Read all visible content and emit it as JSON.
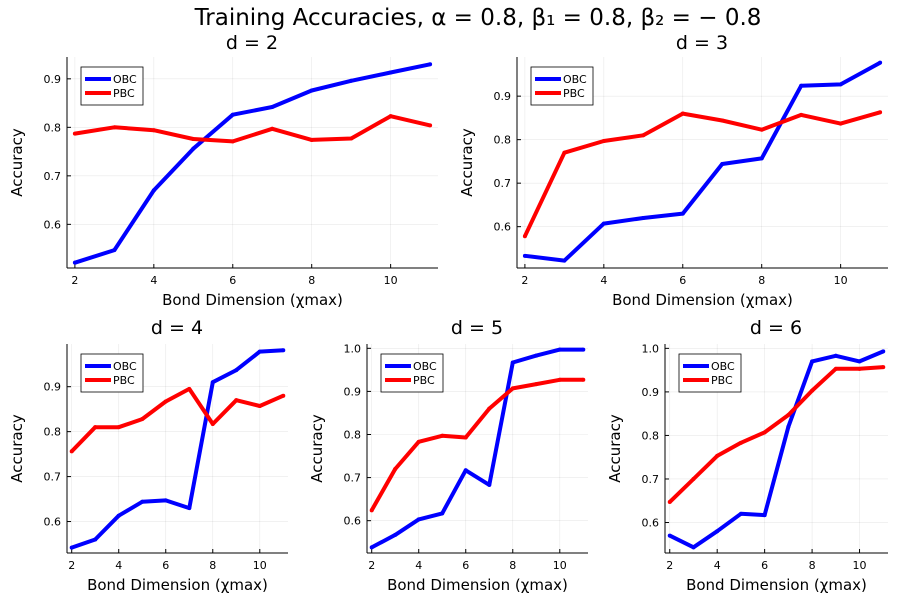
{
  "suptitle": "Training Accuracies, α = 0.8, β₁ = 0.8, β₂ = − 0.8",
  "colors": {
    "OBC": "#0000ff",
    "PBC": "#ff0000"
  },
  "chart_data": [
    {
      "type": "line",
      "title": "d = 2",
      "xlabel": "Bond Dimension (χmax)",
      "ylabel": "Accuracy",
      "x": [
        2,
        3,
        4,
        5,
        6,
        7,
        8,
        9,
        10,
        11
      ],
      "xlim": [
        1.8,
        11.2
      ],
      "ylim": [
        0.51,
        0.945
      ],
      "xticks": [
        2,
        4,
        6,
        8,
        10
      ],
      "yticks": [
        0.6,
        0.7,
        0.8,
        0.9
      ],
      "legend": "top-left",
      "grid": true,
      "series": [
        {
          "name": "OBC",
          "values": [
            0.521,
            0.547,
            0.67,
            0.756,
            0.826,
            0.842,
            0.876,
            0.896,
            0.913,
            0.93
          ]
        },
        {
          "name": "PBC",
          "values": [
            0.787,
            0.8,
            0.794,
            0.776,
            0.771,
            0.797,
            0.774,
            0.777,
            0.823,
            0.804
          ]
        }
      ]
    },
    {
      "type": "line",
      "title": "d = 3",
      "xlabel": "Bond Dimension (χmax)",
      "ylabel": "Accuracy",
      "x": [
        2,
        3,
        4,
        5,
        6,
        7,
        8,
        9,
        10,
        11
      ],
      "xlim": [
        1.8,
        11.2
      ],
      "ylim": [
        0.505,
        0.99
      ],
      "xticks": [
        2,
        4,
        6,
        8,
        10
      ],
      "yticks": [
        0.6,
        0.7,
        0.8,
        0.9
      ],
      "legend": "top-left",
      "grid": true,
      "series": [
        {
          "name": "OBC",
          "values": [
            0.533,
            0.522,
            0.607,
            0.62,
            0.63,
            0.744,
            0.757,
            0.924,
            0.927,
            0.977
          ]
        },
        {
          "name": "PBC",
          "values": [
            0.578,
            0.77,
            0.797,
            0.81,
            0.86,
            0.844,
            0.823,
            0.857,
            0.837,
            0.863
          ]
        }
      ]
    },
    {
      "type": "line",
      "title": "d = 4",
      "xlabel": "Bond Dimension (χmax)",
      "ylabel": "Accuracy",
      "x": [
        2,
        3,
        4,
        5,
        6,
        7,
        8,
        9,
        10,
        11
      ],
      "xlim": [
        1.8,
        11.2
      ],
      "ylim": [
        0.53,
        0.995
      ],
      "xticks": [
        2,
        4,
        6,
        8,
        10
      ],
      "yticks": [
        0.6,
        0.7,
        0.8,
        0.9
      ],
      "legend": "top-left",
      "grid": true,
      "series": [
        {
          "name": "OBC",
          "values": [
            0.542,
            0.56,
            0.613,
            0.644,
            0.647,
            0.63,
            0.91,
            0.937,
            0.978,
            0.981
          ]
        },
        {
          "name": "PBC",
          "values": [
            0.756,
            0.81,
            0.81,
            0.828,
            0.867,
            0.895,
            0.817,
            0.87,
            0.857,
            0.88
          ]
        }
      ]
    },
    {
      "type": "line",
      "title": "d = 5",
      "xlabel": "Bond Dimension (χmax)",
      "ylabel": "Accuracy",
      "x": [
        2,
        3,
        4,
        5,
        6,
        7,
        8,
        9,
        10,
        11
      ],
      "xlim": [
        1.8,
        11.2
      ],
      "ylim": [
        0.525,
        1.01
      ],
      "xticks": [
        2,
        4,
        6,
        8,
        10
      ],
      "yticks": [
        0.6,
        0.7,
        0.8,
        0.9,
        1.0
      ],
      "legend": "top-left",
      "grid": true,
      "series": [
        {
          "name": "OBC",
          "values": [
            0.538,
            0.567,
            0.603,
            0.617,
            0.717,
            0.683,
            0.967,
            0.983,
            0.997,
            0.997
          ]
        },
        {
          "name": "PBC",
          "values": [
            0.624,
            0.72,
            0.783,
            0.797,
            0.793,
            0.86,
            0.907,
            0.917,
            0.927,
            0.927
          ]
        }
      ]
    },
    {
      "type": "line",
      "title": "d = 6",
      "xlabel": "Bond Dimension (χmax)",
      "ylabel": "Accuracy",
      "x": [
        2,
        3,
        4,
        5,
        6,
        7,
        8,
        9,
        10,
        11
      ],
      "xlim": [
        1.8,
        11.2
      ],
      "ylim": [
        0.53,
        1.01
      ],
      "xticks": [
        2,
        4,
        6,
        8,
        10
      ],
      "yticks": [
        0.6,
        0.7,
        0.8,
        0.9,
        1.0
      ],
      "legend": "top-left",
      "grid": true,
      "series": [
        {
          "name": "OBC",
          "values": [
            0.57,
            0.543,
            0.58,
            0.62,
            0.617,
            0.82,
            0.97,
            0.983,
            0.97,
            0.993
          ]
        },
        {
          "name": "PBC",
          "values": [
            0.647,
            0.7,
            0.753,
            0.783,
            0.807,
            0.847,
            0.903,
            0.953,
            0.953,
            0.957
          ]
        }
      ]
    }
  ]
}
